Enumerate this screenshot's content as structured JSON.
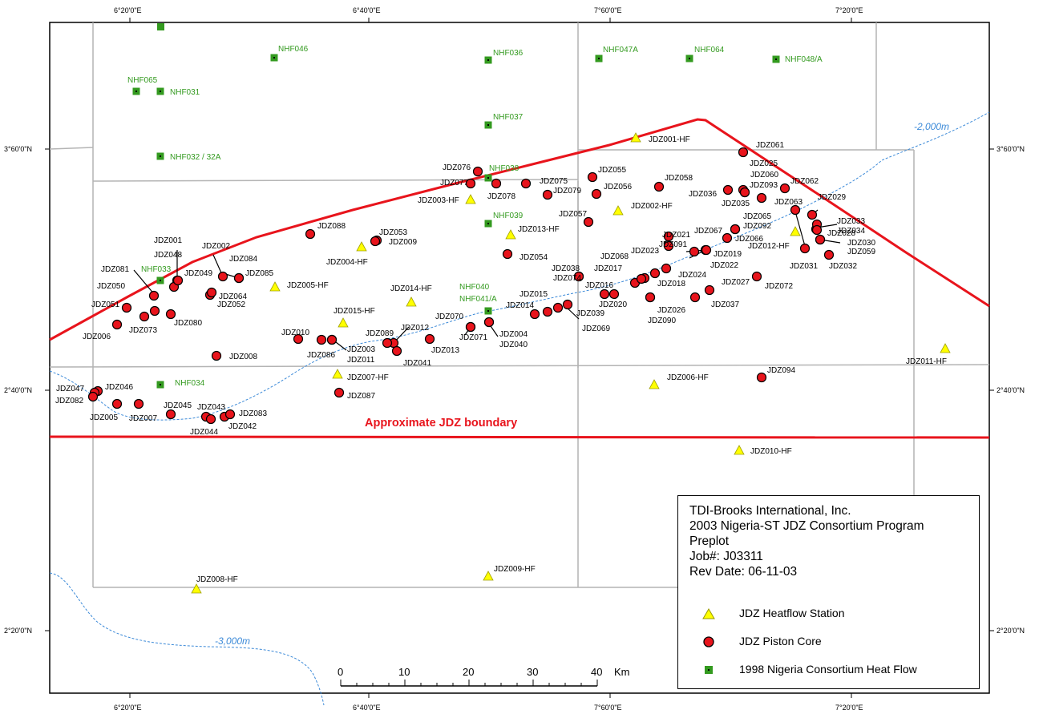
{
  "title": "Approximate JDZ boundary",
  "lon_ticks": [
    "6°20'0\"E",
    "6°40'0\"E",
    "7°60'0\"E",
    "7°20'0\"E"
  ],
  "lat_ticks": [
    "3°60'0\"N",
    "2°40'0\"N",
    "2°20'0\"N"
  ],
  "contours": [
    "-2,000m",
    "-3,000m"
  ],
  "scalebar": {
    "ticks": [
      "0",
      "10",
      "20",
      "30",
      "40"
    ],
    "unit": "Km"
  },
  "colors": {
    "boundary": "#e8141c",
    "core": "#e8141c",
    "heatflow": "#ffff00",
    "nhf": "#339a1f",
    "grid": "#b4b4b4",
    "contour": "#3c8ad8"
  },
  "legend": {
    "company": "TDI-Brooks International, Inc.",
    "program": "2003 Nigeria-ST JDZ Consortium Program",
    "stage": "Preplot",
    "job": "Job#: J03311",
    "rev": "Rev Date: 06-11-03",
    "items": [
      {
        "symbol": "triangle",
        "label": "JDZ Heatflow Station"
      },
      {
        "symbol": "circle",
        "label": "JDZ Piston Core"
      },
      {
        "symbol": "square",
        "label": "1998 Nigeria Consortium Heat Flow"
      }
    ]
  },
  "nhf_stations": [
    "NHF046",
    "NHF036",
    "NHF047A",
    "NHF064",
    "NHF048/A",
    "NHF065",
    "NHF031",
    "NHF037",
    "NHF032 / 32A",
    "NHF038",
    "NHF039",
    "NHF033",
    "NHF040",
    "NHF041/A",
    "NHF034"
  ],
  "heatflow_stations": [
    "JDZ001-HF",
    "JDZ003-HF",
    "JDZ002-HF",
    "JDZ013-HF",
    "JDZ004-HF",
    "JDZ012-HF",
    "JDZ005-HF",
    "JDZ014-HF",
    "JDZ015-HF",
    "JDZ011-HF",
    "JDZ007-HF",
    "JDZ006-HF",
    "JDZ010-HF",
    "JDZ009-HF",
    "JDZ008-HF"
  ],
  "piston_cores": [
    "JDZ001",
    "JDZ002",
    "JDZ003",
    "JDZ004",
    "JDZ005",
    "JDZ006",
    "JDZ007",
    "JDZ008",
    "JDZ009",
    "JDZ010",
    "JDZ011",
    "JDZ012",
    "JDZ013",
    "JDZ014",
    "JDZ015",
    "JDZ016",
    "JDZ017",
    "JDZ018",
    "JDZ019",
    "JDZ020",
    "JDZ021",
    "JDZ022",
    "JDZ023",
    "JDZ024",
    "JDZ025",
    "JDZ026",
    "JDZ027",
    "JDZ028",
    "JDZ029",
    "JDZ030",
    "JDZ031",
    "JDZ032",
    "JDZ033",
    "JDZ034",
    "JDZ035",
    "JDZ036",
    "JDZ037",
    "JDZ038",
    "JDZ039",
    "JDZ040",
    "JDZ041",
    "JDZ042",
    "JDZ043",
    "JDZ044",
    "JDZ045",
    "JDZ046",
    "JDZ047",
    "JDZ048",
    "JDZ049",
    "JDZ050",
    "JDZ051",
    "JDZ052",
    "JDZ053",
    "JDZ054",
    "JDZ055",
    "JDZ056",
    "JDZ057",
    "JDZ058",
    "JDZ059",
    "JDZ060",
    "JDZ061",
    "JDZ062",
    "JDZ063",
    "JDZ064",
    "JDZ065",
    "JDZ066",
    "JDZ067",
    "JDZ068",
    "JDZ069",
    "JDZ070",
    "JDZ071",
    "JDZ072",
    "JDZ073",
    "JDZ074",
    "JDZ075",
    "JDZ076",
    "JDZ077",
    "JDZ078",
    "JDZ079",
    "JDZ080",
    "JDZ081",
    "JDZ082",
    "JDZ083",
    "JDZ084",
    "JDZ085",
    "JDZ086",
    "JDZ087",
    "JDZ088",
    "JDZ089",
    "JDZ090",
    "JDZ091",
    "JDZ092",
    "JDZ093",
    "JDZ094"
  ]
}
